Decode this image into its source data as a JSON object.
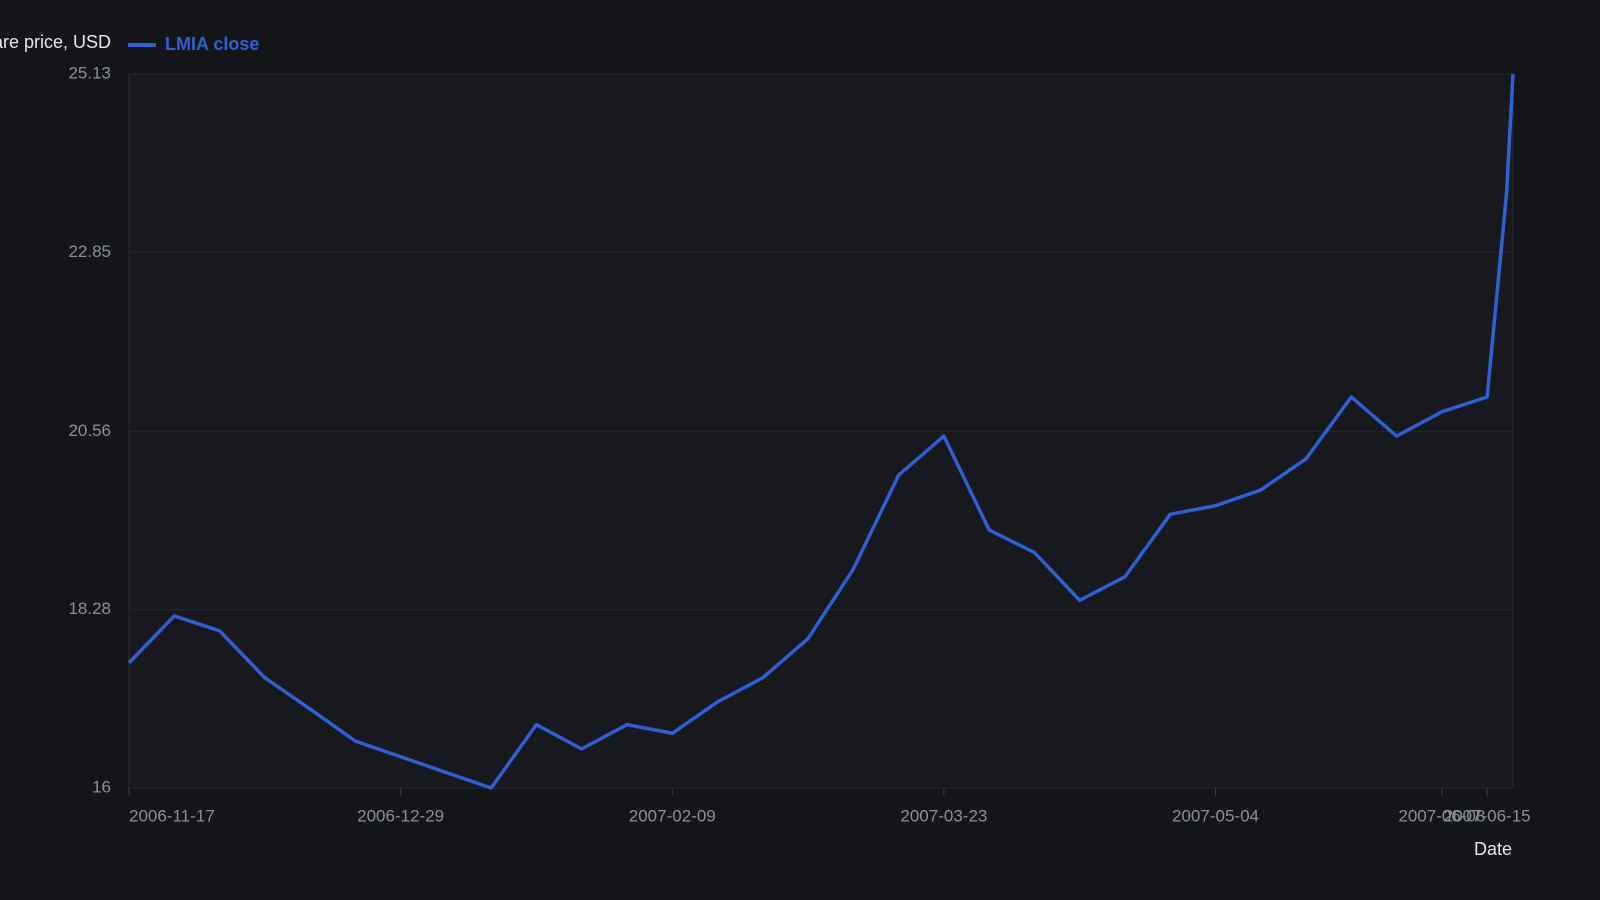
{
  "chart_data": {
    "type": "line",
    "y_label": "Share price, USD",
    "x_label": "Date",
    "x": [
      "2006-11-17",
      "2006-11-24",
      "2006-12-01",
      "2006-12-08",
      "2006-12-15",
      "2006-12-22",
      "2006-12-29",
      "2007-01-05",
      "2007-01-12",
      "2007-01-19",
      "2007-01-26",
      "2007-02-02",
      "2007-02-09",
      "2007-02-16",
      "2007-02-23",
      "2007-03-02",
      "2007-03-09",
      "2007-03-16",
      "2007-03-23",
      "2007-03-30",
      "2007-04-06",
      "2007-04-13",
      "2007-04-20",
      "2007-04-27",
      "2007-05-04",
      "2007-05-11",
      "2007-05-18",
      "2007-05-25",
      "2007-06-01",
      "2007-06-08",
      "2007-06-15",
      "2007-06-18",
      "2007-06-19"
    ],
    "series": [
      {
        "name": "LMIA close",
        "color": "#2f5fd0",
        "values": [
          17.6,
          18.2,
          18.01,
          17.41,
          17.01,
          16.6,
          16.4,
          16.2,
          16.0,
          16.81,
          16.5,
          16.81,
          16.7,
          17.1,
          17.41,
          17.91,
          18.8,
          20.0,
          20.5,
          19.3,
          19.01,
          18.4,
          18.7,
          19.5,
          19.61,
          19.81,
          20.21,
          21.0,
          20.5,
          20.81,
          21.0,
          23.6,
          25.13
        ]
      }
    ],
    "xlim": [
      "2006-11-17",
      "2007-06-19"
    ],
    "xticks": [
      "2006-11-17",
      "2006-12-29",
      "2007-02-09",
      "2007-03-23",
      "2007-05-04",
      "2007-06-08",
      "2007-06-15"
    ],
    "ylim": [
      16,
      25.13
    ],
    "yticks": [
      16,
      18.28,
      20.56,
      22.85,
      25.13
    ],
    "grid": true
  }
}
